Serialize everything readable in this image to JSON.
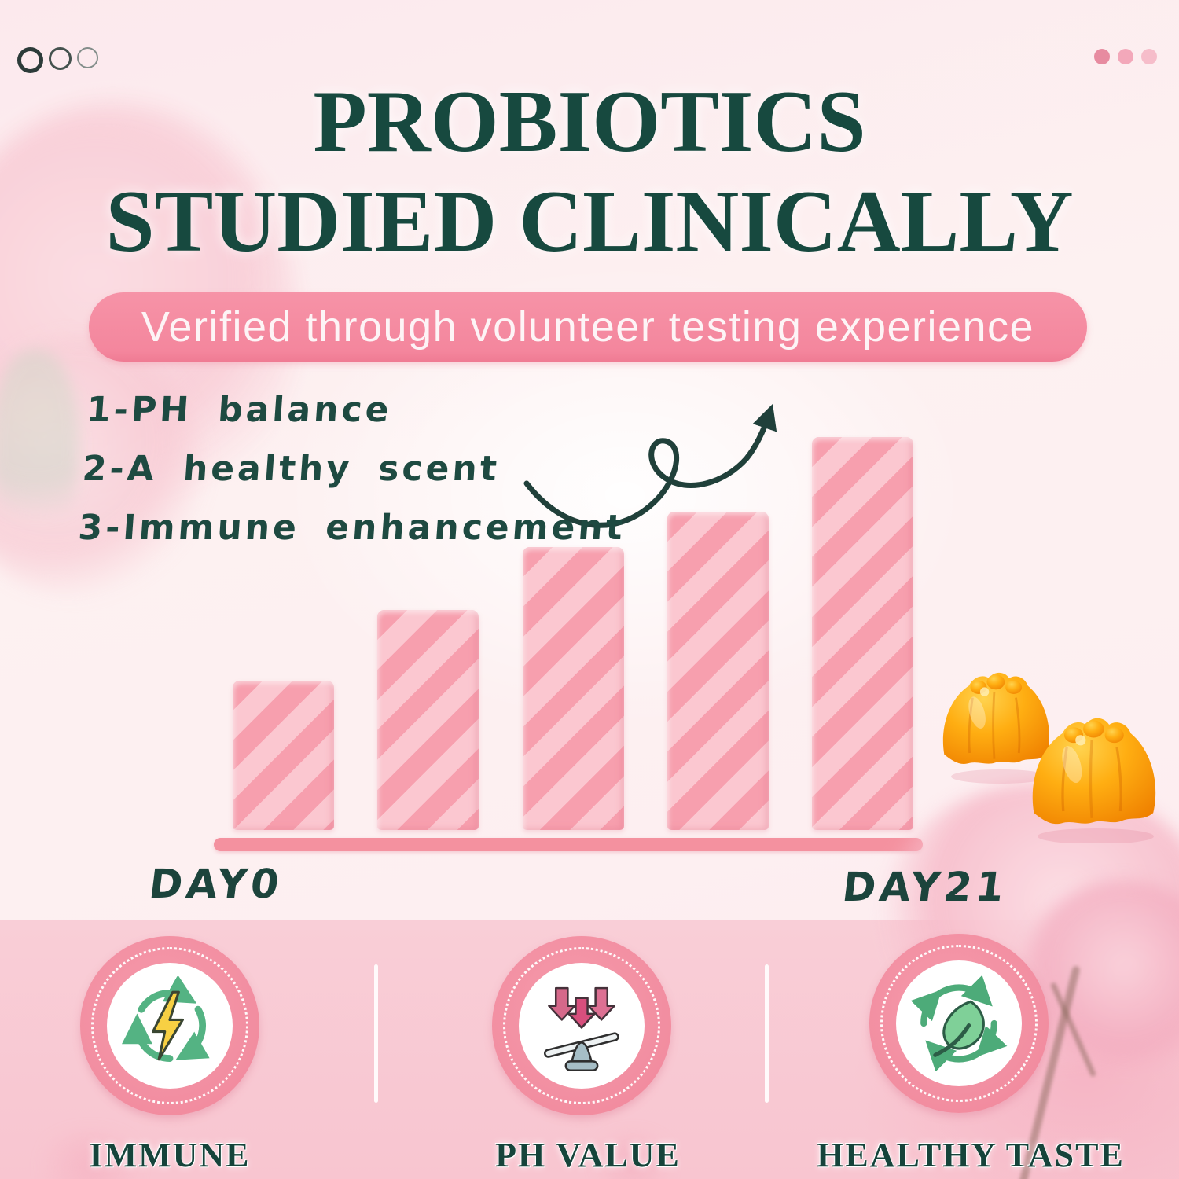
{
  "window_controls": {
    "left_dots": [
      "outlined-dark",
      "outlined-medium",
      "outlined-light"
    ],
    "right_dot_colors": [
      "#e78ba0",
      "#f3a8ba",
      "#f6bdca"
    ]
  },
  "title": {
    "line1": "PROBIOTICS",
    "line2": "STUDIED CLINICALLY",
    "color": "#17493f"
  },
  "banner": {
    "text": "Verified through volunteer testing experience",
    "bg_color": "#f48da2",
    "text_color": "#fdf4f6"
  },
  "benefits": [
    "1-PH balance",
    "2-A healthy scent",
    "3-Immune enhancement"
  ],
  "chart_data": {
    "type": "bar",
    "title": "",
    "xlabel": "",
    "ylabel": "",
    "categories": [
      "DAY0",
      "",
      "",
      "",
      "DAY21"
    ],
    "values": [
      38,
      56,
      72,
      81,
      100
    ],
    "ylim": [
      0,
      100
    ],
    "grid": false,
    "legend": null,
    "x_start_label": "DAY0",
    "x_end_label": "DAY21",
    "bar_color": "#f79fae",
    "bar_stripe_color": "#fbc7d0",
    "axis_color": "#f4919f",
    "annotation": "hand-drawn looping arrow rising toward DAY21"
  },
  "footer": {
    "items": [
      {
        "icon": "recycle-lightning-icon",
        "label": "IMMUNE"
      },
      {
        "icon": "down-arrows-balance-icon",
        "label": "PH VALUE"
      },
      {
        "icon": "recycle-leaf-icon",
        "label": "HEALTHY TASTE"
      }
    ]
  },
  "decorations": {
    "gummies": "two orange jelly gummies",
    "flowers": "pink carnations"
  }
}
